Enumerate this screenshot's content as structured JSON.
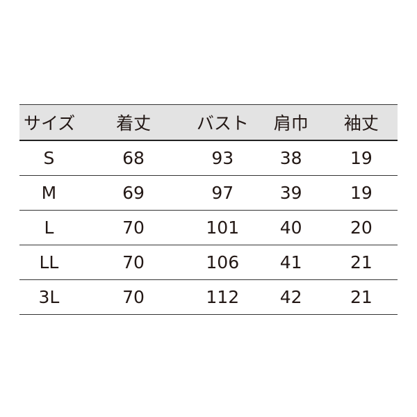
{
  "headers": [
    "サイズ",
    "着丈",
    "バスト",
    "肩巾",
    "袖丈"
  ],
  "rows": [
    [
      "S",
      "68",
      "93",
      "38",
      "19"
    ],
    [
      "M",
      "69",
      "97",
      "39",
      "19"
    ],
    [
      "L",
      "70",
      "101",
      "40",
      "20"
    ],
    [
      "LL",
      "70",
      "106",
      "41",
      "21"
    ],
    [
      "3L",
      "70",
      "112",
      "42",
      "21"
    ]
  ]
}
